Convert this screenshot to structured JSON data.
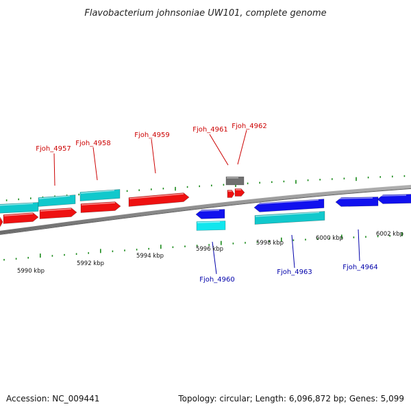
{
  "header": {
    "title": "Flavobacterium johnsoniae UW101, complete genome"
  },
  "footer": {
    "accession": "Accession: NC_009441",
    "summary": "Topology: circular; Length: 6,096,872 bp; Genes: 5,099"
  },
  "colors": {
    "forward_cds": "#ee1111",
    "forward_rna": "#11c8cc",
    "reverse_cds": "#1111ee",
    "reverse_rna": "#11e6ee",
    "other": "#707070",
    "backbone": "#8a8a8a",
    "ticks": "#1a8a1a",
    "label_forward": "#cc0000",
    "label_reverse": "#0000aa"
  },
  "scale": {
    "unit": "kbp",
    "labels": [
      "5990 kbp",
      "5992 kbp",
      "5994 kbp",
      "5996 kbp",
      "5998 kbp",
      "6000 kbp",
      "6002 kbp"
    ]
  },
  "genes": {
    "top": [
      "Fjoh_4957",
      "Fjoh_4958",
      "Fjoh_4959",
      "Fjoh_4961",
      "Fjoh_4962"
    ],
    "bottom": [
      "Fjoh_4960",
      "Fjoh_4963",
      "Fjoh_4964"
    ]
  }
}
